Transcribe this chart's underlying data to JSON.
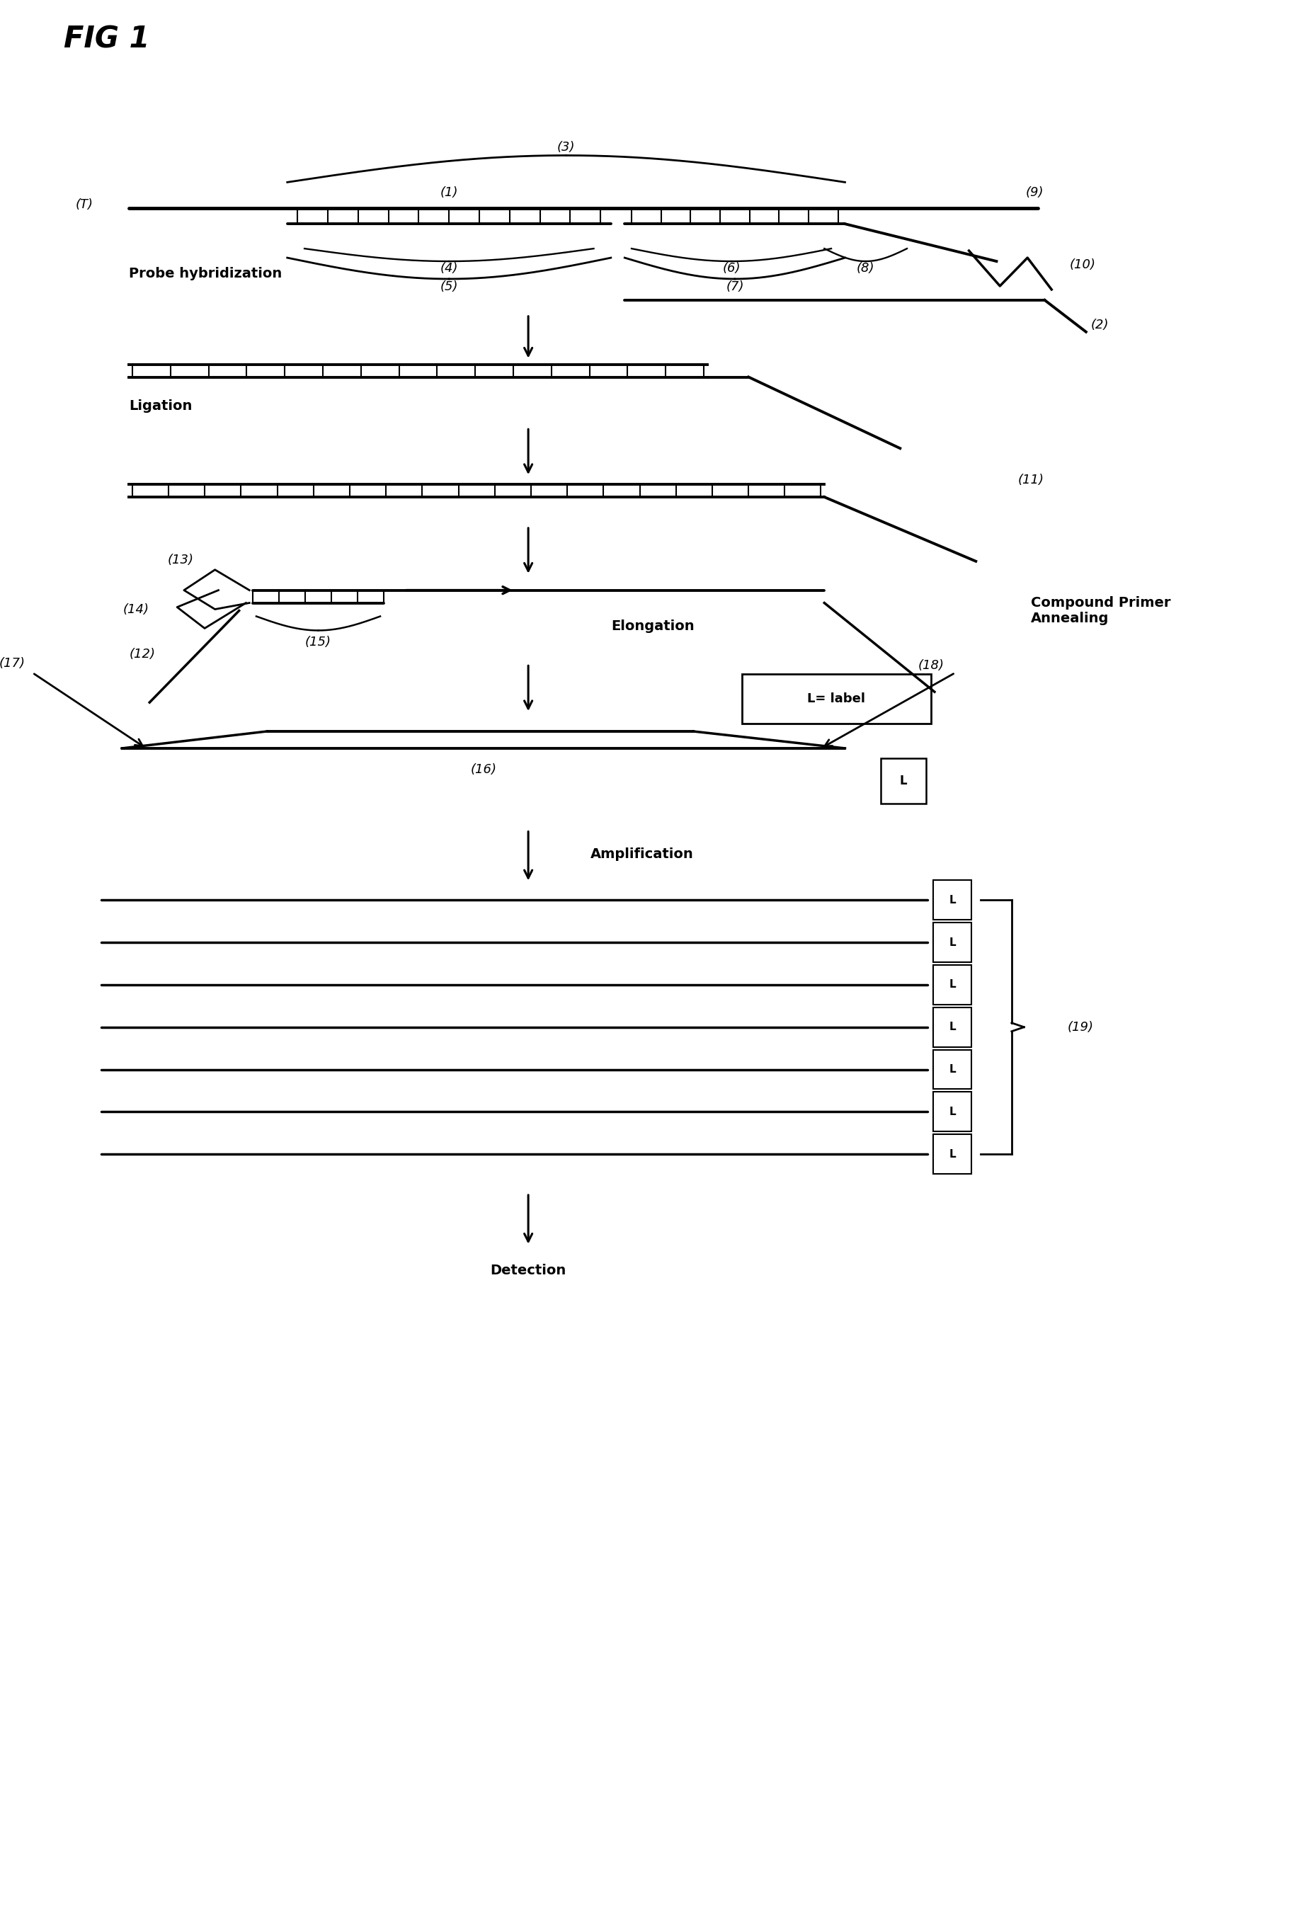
{
  "title": "FIG 1",
  "background_color": "#ffffff",
  "fig_width": 18.22,
  "fig_height": 27.26,
  "labels": {
    "T": "(T)",
    "1": "(1)",
    "2": "(2)",
    "3": "(3)",
    "4": "(4)",
    "5": "(5)",
    "6": "(6)",
    "7": "(7)",
    "8": "(8)",
    "9": "(9)",
    "10": "(10)",
    "11": "(11)",
    "12": "(12)",
    "13": "(13)",
    "14": "(14)",
    "15": "(15)",
    "16": "(16)",
    "17": "(17)",
    "18": "(18)",
    "19": "(19)"
  },
  "step_labels": {
    "probe_hybridization": "Probe hybridization",
    "ligation": "Ligation",
    "compound_primer": "Compound Primer\nAnnealing",
    "elongation": "Elongation",
    "amplification": "Amplification",
    "detection": "Detection",
    "L_label": "L= label",
    "L": "L"
  }
}
